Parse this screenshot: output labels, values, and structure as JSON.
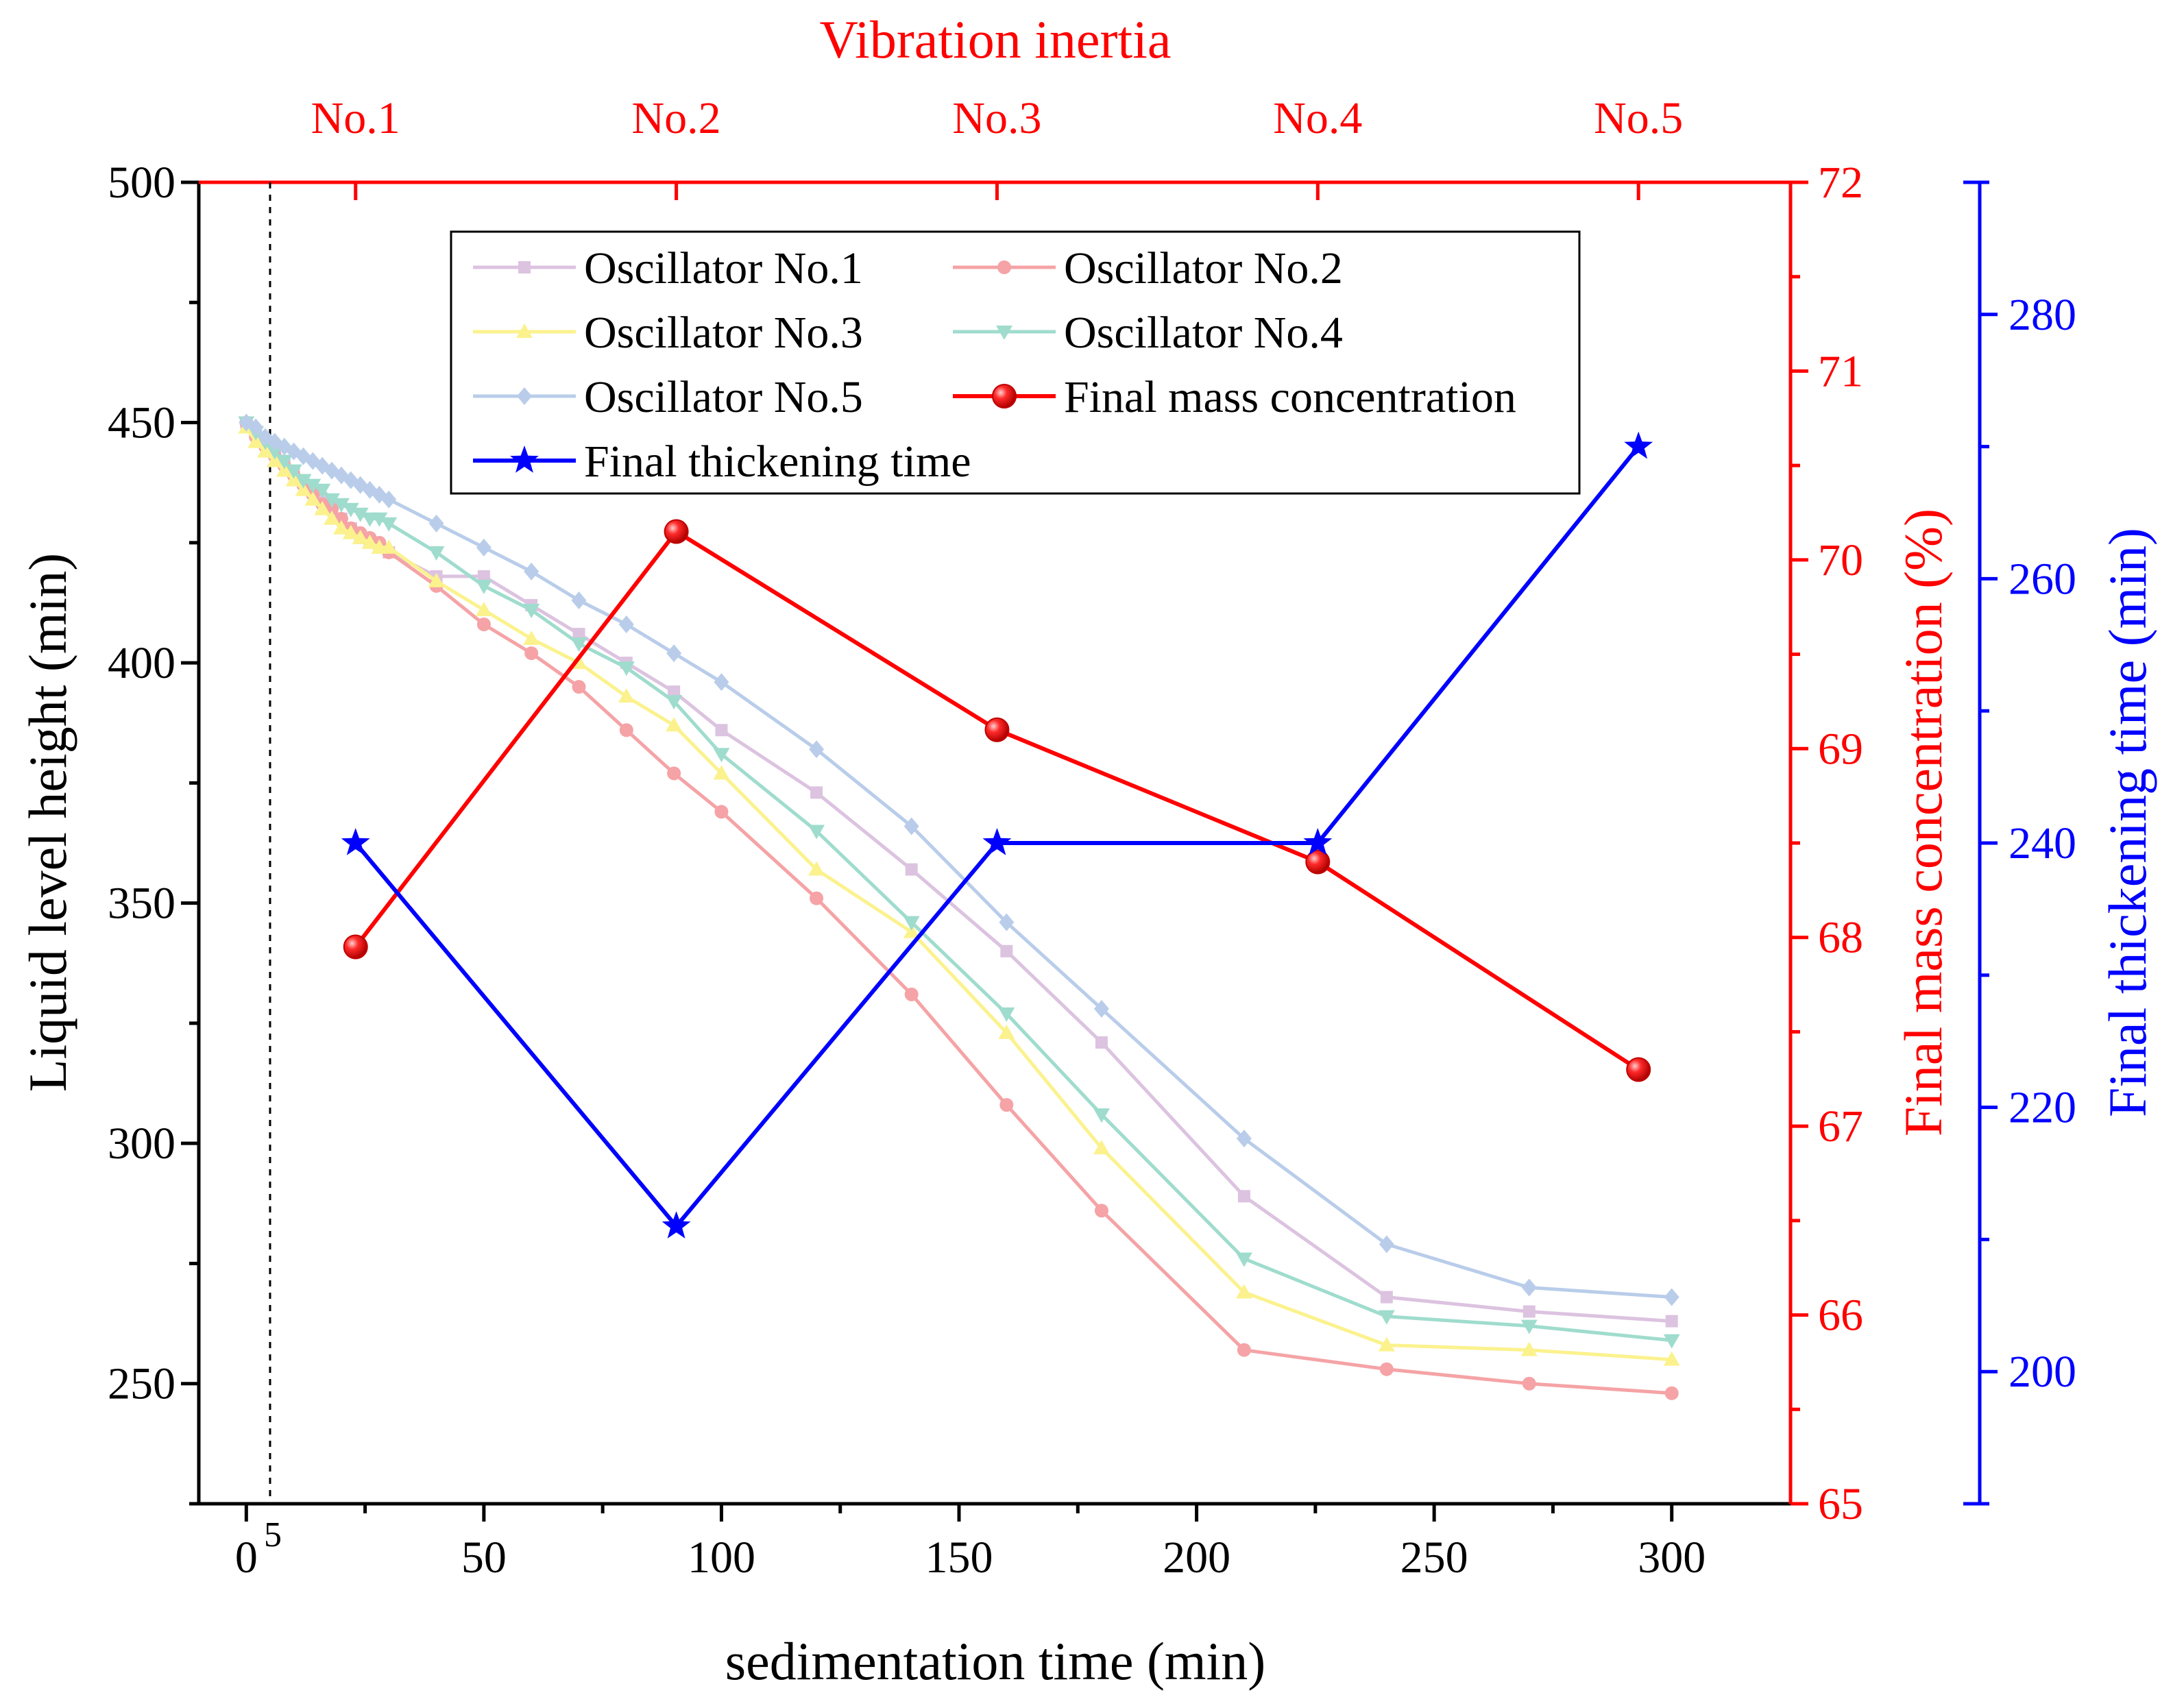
{
  "colors": {
    "axis_left": "#000000",
    "axis_red": "#ff0000",
    "axis_blue": "#0000ff",
    "osc1": "#dcc3e0",
    "osc2": "#f5a3a6",
    "osc3": "#fbf28e",
    "osc4": "#9fdccd",
    "osc5": "#b9cdea",
    "final_mass": "#ff0000",
    "final_time": "#0000ff"
  },
  "chart_data": {
    "type": "line",
    "title": "Vibration inertia",
    "xlabel": "sedimentation time (min)",
    "ylabel": "Liquid level height (min)",
    "y2label": "Final mass concentration (%)",
    "y3label": "Final thickening time (min)",
    "xlim": [
      -10,
      325
    ],
    "ylim": [
      225,
      500
    ],
    "y2lim": [
      65,
      72
    ],
    "y3lim": [
      190,
      290
    ],
    "x_ticks": [
      "0",
      "50",
      "100",
      "150",
      "200",
      "250",
      "300"
    ],
    "x_extra_tick": "5",
    "y_ticks": [
      "250",
      "300",
      "350",
      "400",
      "450",
      "500"
    ],
    "y2_ticks": [
      "65",
      "66",
      "67",
      "68",
      "69",
      "70",
      "71",
      "72"
    ],
    "y3_ticks": [
      "200",
      "220",
      "240",
      "260",
      "280"
    ],
    "top_categories": [
      "No.1",
      "No.2",
      "No.3",
      "No.4",
      "No.5"
    ],
    "series": [
      {
        "name": "Oscillator No.1",
        "color_key": "osc1",
        "marker": "square",
        "x": [
          0,
          2,
          4,
          6,
          8,
          10,
          12,
          14,
          16,
          18,
          20,
          22,
          24,
          26,
          28,
          30,
          40,
          50,
          60,
          70,
          80,
          90,
          100,
          120,
          140,
          160,
          180,
          210,
          240,
          270,
          300
        ],
        "y": [
          450,
          448,
          446,
          444,
          442,
          440,
          438,
          436,
          434,
          432,
          430,
          428,
          426,
          425,
          424,
          423,
          418,
          418,
          412,
          406,
          400,
          394,
          386,
          373,
          357,
          340,
          321,
          289,
          268,
          265,
          263
        ]
      },
      {
        "name": "Oscillator No.2",
        "color_key": "osc2",
        "marker": "circle",
        "x": [
          0,
          2,
          4,
          6,
          8,
          10,
          12,
          14,
          16,
          18,
          20,
          22,
          24,
          26,
          28,
          30,
          40,
          50,
          60,
          70,
          80,
          90,
          100,
          120,
          140,
          160,
          180,
          210,
          240,
          270,
          300
        ],
        "y": [
          450,
          447,
          445,
          443,
          441,
          439,
          437,
          435,
          433,
          432,
          430,
          428,
          427,
          426,
          425,
          423,
          416,
          408,
          402,
          395,
          386,
          377,
          369,
          351,
          331,
          308,
          286,
          257,
          253,
          250,
          248
        ]
      },
      {
        "name": "Oscillator No.3",
        "color_key": "osc3",
        "marker": "triangle-up",
        "x": [
          0,
          2,
          4,
          6,
          8,
          10,
          12,
          14,
          16,
          18,
          20,
          22,
          24,
          26,
          28,
          30,
          40,
          50,
          60,
          70,
          80,
          90,
          100,
          120,
          140,
          160,
          180,
          210,
          240,
          270,
          300
        ],
        "y": [
          449,
          446,
          444,
          442,
          440,
          438,
          436,
          434,
          432,
          430,
          428,
          427,
          426,
          425,
          424,
          424,
          417,
          411,
          405,
          400,
          393,
          387,
          377,
          357,
          344,
          323,
          299,
          269,
          258,
          257,
          255
        ]
      },
      {
        "name": "Oscillator No.4",
        "color_key": "osc4",
        "marker": "triangle-down",
        "x": [
          0,
          2,
          4,
          6,
          8,
          10,
          12,
          14,
          16,
          18,
          20,
          22,
          24,
          26,
          28,
          30,
          40,
          50,
          60,
          70,
          80,
          90,
          100,
          120,
          140,
          160,
          180,
          210,
          240,
          270,
          300
        ],
        "y": [
          450,
          448,
          446,
          444,
          442,
          440,
          438,
          437,
          436,
          434,
          433,
          432,
          431,
          430,
          430,
          429,
          423,
          416,
          411,
          404,
          399,
          392,
          381,
          365,
          346,
          327,
          306,
          276,
          264,
          262,
          259
        ]
      },
      {
        "name": "Oscillator No.5",
        "color_key": "osc5",
        "marker": "diamond",
        "x": [
          0,
          2,
          4,
          6,
          8,
          10,
          12,
          14,
          16,
          18,
          20,
          22,
          24,
          26,
          28,
          30,
          40,
          50,
          60,
          70,
          80,
          90,
          100,
          120,
          140,
          160,
          180,
          210,
          240,
          270,
          300
        ],
        "y": [
          450,
          449,
          447,
          446,
          445,
          444,
          443,
          442,
          441,
          440,
          439,
          438,
          437,
          436,
          435,
          434,
          429,
          424,
          419,
          413,
          408,
          402,
          396,
          382,
          366,
          346,
          328,
          301,
          279,
          270,
          268
        ]
      },
      {
        "name": "Final mass concentration",
        "color_key": "final_mass",
        "marker": "ball",
        "axis": "y2",
        "categories": [
          "No.1",
          "No.2",
          "No.3",
          "No.4",
          "No.5"
        ],
        "values": [
          67.95,
          70.15,
          69.1,
          68.4,
          67.3
        ]
      },
      {
        "name": "Final thickening time",
        "color_key": "final_time",
        "marker": "star",
        "axis": "y3",
        "categories": [
          "No.1",
          "No.2",
          "No.3",
          "No.4",
          "No.5"
        ],
        "values": [
          240,
          211,
          240,
          240,
          270
        ]
      }
    ],
    "legend": "top-center, two columns"
  }
}
